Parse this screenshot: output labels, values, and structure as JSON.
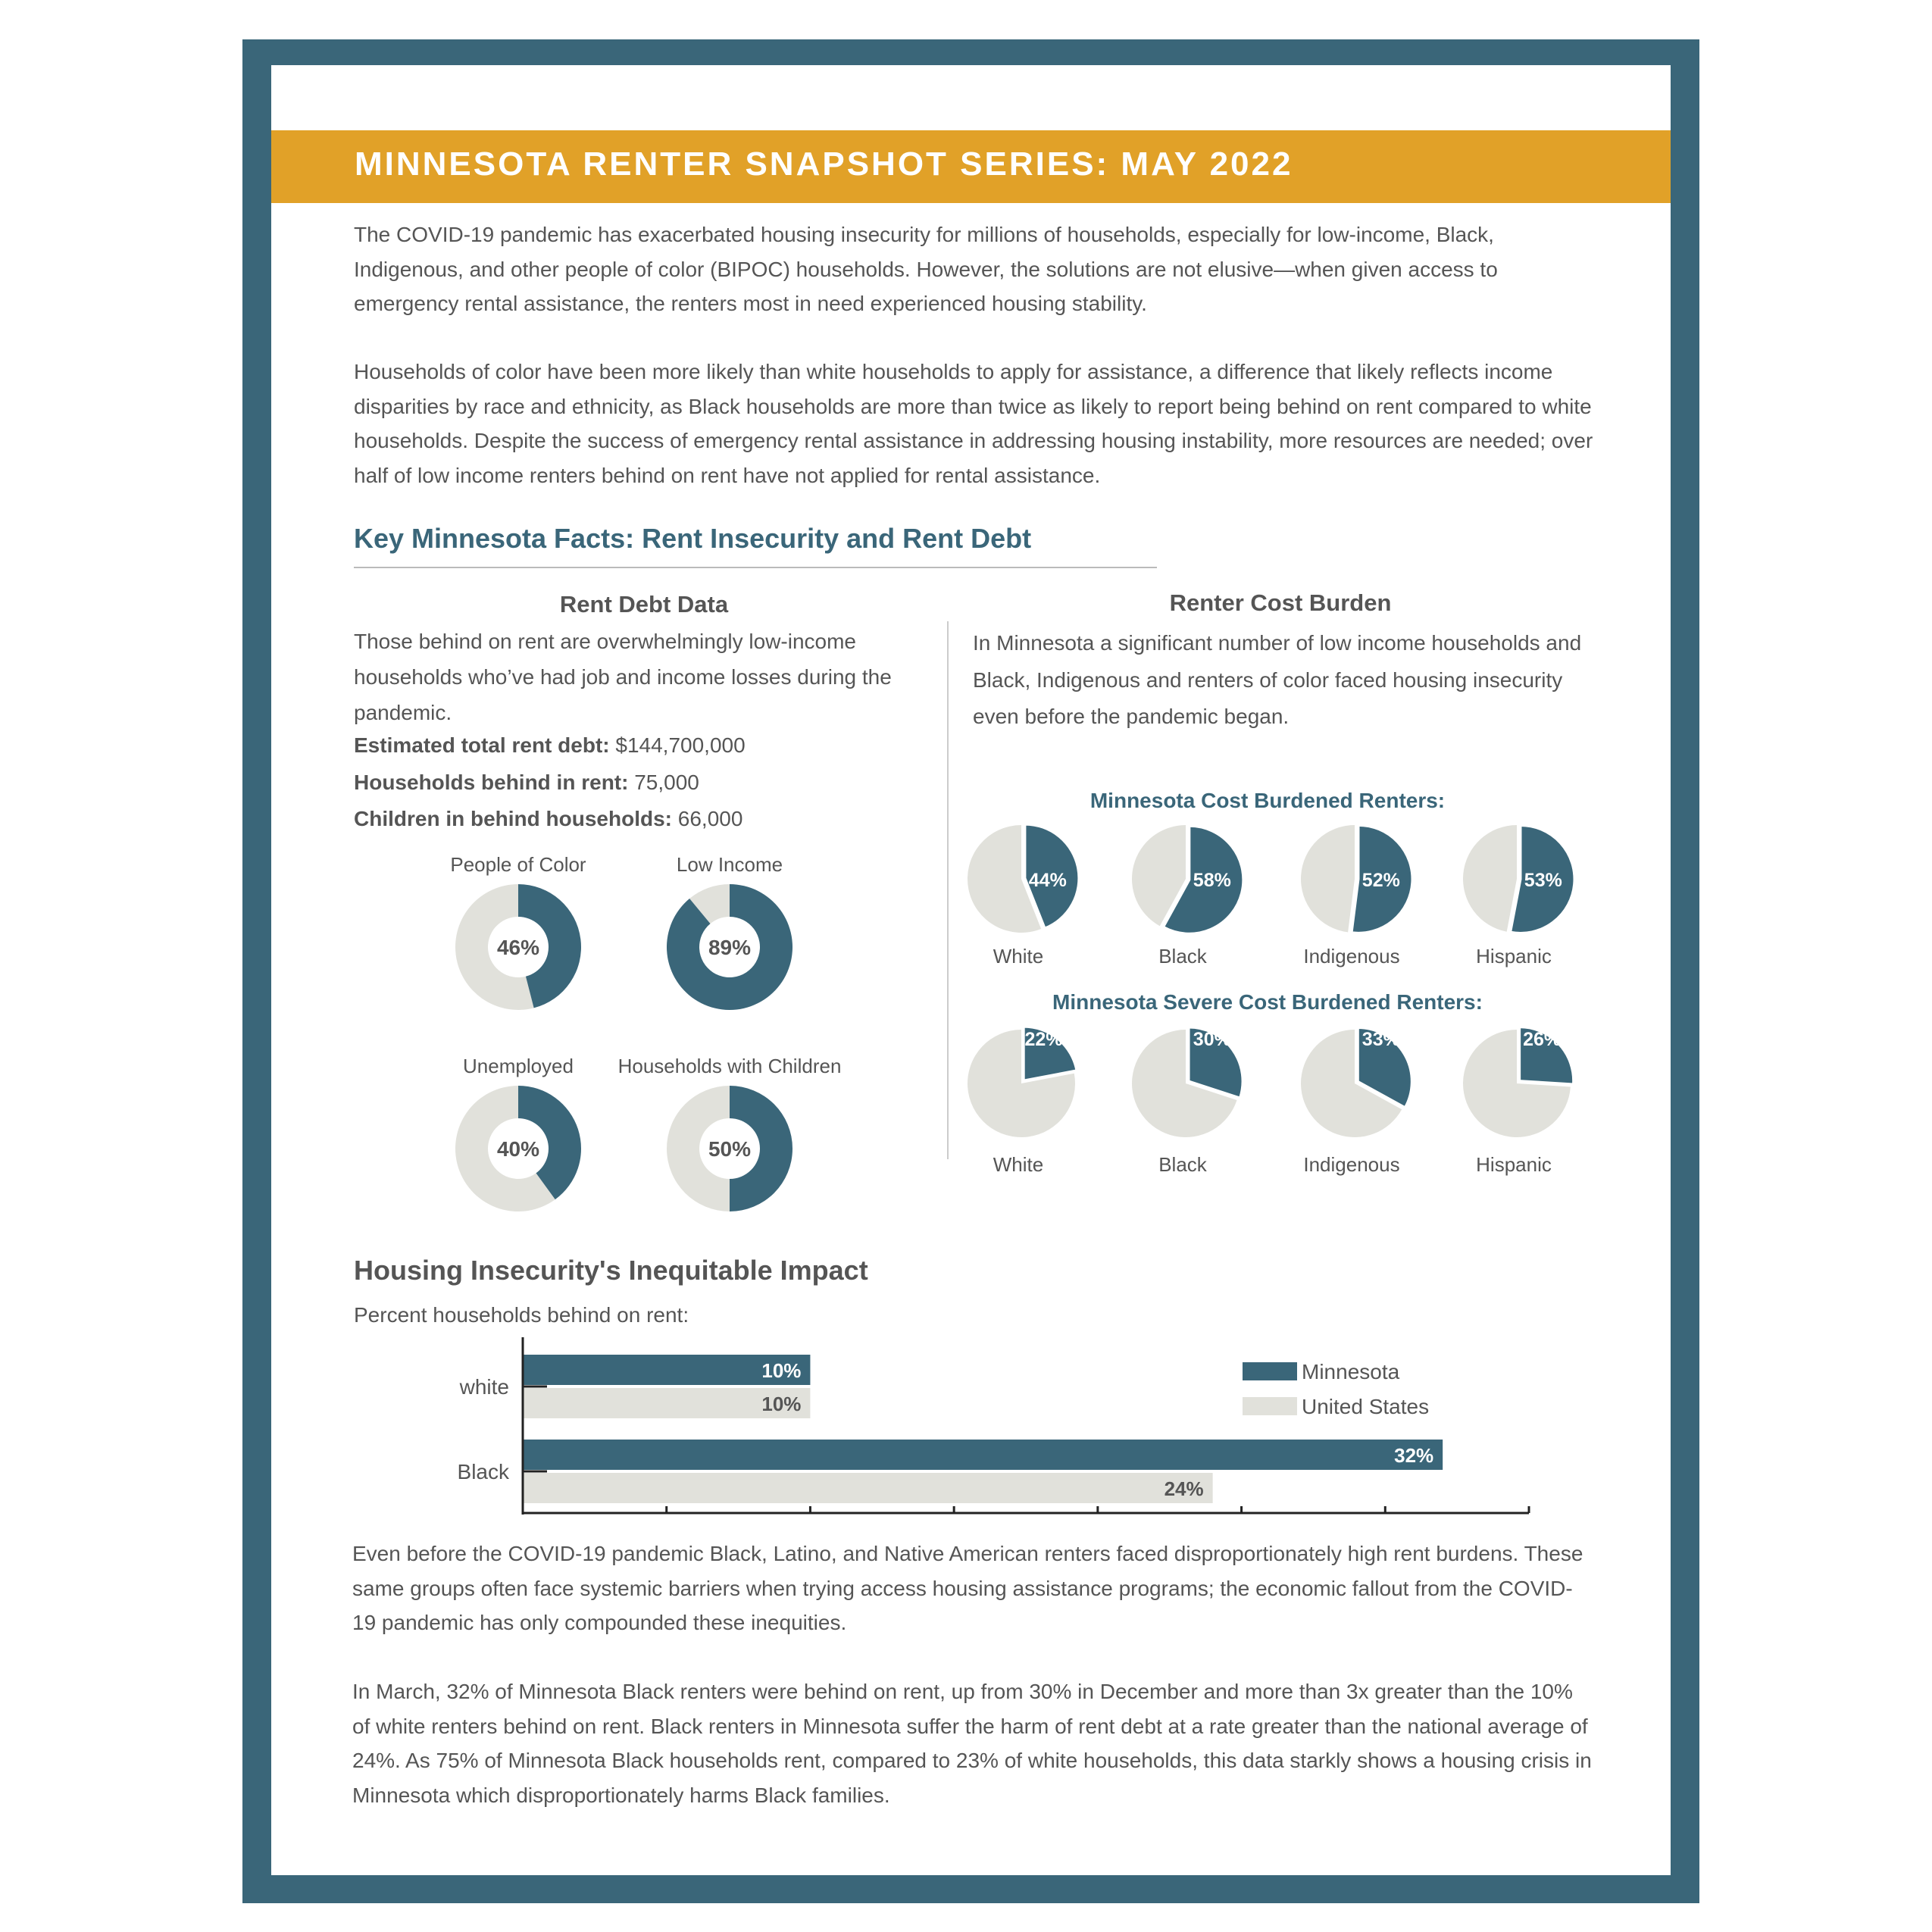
{
  "colors": {
    "frame": "#3a6679",
    "band": "#e1a128",
    "accent": "#3a6679",
    "neutral": "#e1e1db",
    "text": "#555555"
  },
  "title": "MINNESOTA RENTER SNAPSHOT SERIES: MAY 2022",
  "intro": [
    "The COVID-19 pandemic has exacerbated housing insecurity for millions of households, especially for low-income, Black, Indigenous, and other people of color (BIPOC) households. However, the solutions are not elusive—when given access to emergency rental assistance, the renters most in need experienced housing stability.",
    "Households of color have been more likely than white households to apply for assistance, a difference that likely reflects income disparities by race and ethnicity, as Black households are more than twice as likely to report being behind on rent compared to white households. Despite the success of emergency rental assistance in addressing housing instability, more resources are needed; over half of low income renters behind on rent have not applied for rental assistance."
  ],
  "facts_heading": "Key Minnesota Facts: Rent Insecurity and Rent Debt",
  "rent_debt": {
    "heading": "Rent Debt Data",
    "text": "Those behind on rent are overwhelmingly low-income households who’ve had job and income losses during the pandemic.",
    "fields": [
      {
        "label": "Estimated total rent debt:",
        "value": " $144,700,000"
      },
      {
        "label": "Households behind in rent:",
        "value": " 75,000"
      },
      {
        "label": "Children in behind households:",
        "value": " 66,000"
      }
    ]
  },
  "cost_burden": {
    "heading": "Renter Cost Burden",
    "text": "In Minnesota a significant number of low income households and Black, Indigenous and renters of color faced housing insecurity even before the pandemic began."
  },
  "chart_data": [
    {
      "type": "pie",
      "style": "donut",
      "categories": [
        "People of Color",
        "Low Income",
        "Unemployed",
        "Households with Children"
      ],
      "values": [
        46,
        89,
        40,
        50
      ],
      "labels": [
        "46%",
        "89%",
        "40%",
        "50%"
      ],
      "unit": "%"
    },
    {
      "type": "pie",
      "title": "Minnesota Cost Burdened Renters:",
      "categories": [
        "White",
        "Black",
        "Indigenous",
        "Hispanic"
      ],
      "values": [
        44,
        58,
        52,
        53
      ],
      "labels": [
        "44%",
        "58%",
        "52%",
        "53%"
      ]
    },
    {
      "type": "pie",
      "title": "Minnesota Severe Cost Burdened Renters:",
      "categories": [
        "White",
        "Black",
        "Indigenous",
        "Hispanic"
      ],
      "values": [
        22,
        30,
        33,
        26
      ],
      "labels": [
        "22%",
        "30%",
        "33%",
        "26%"
      ]
    },
    {
      "type": "bar",
      "orientation": "horizontal",
      "title": "Housing Insecurity's Inequitable Impact",
      "subtitle": "Percent households behind on rent:",
      "categories": [
        "white",
        "Black"
      ],
      "series": [
        {
          "name": "Minnesota",
          "values": [
            10,
            32
          ],
          "labels": [
            "10%",
            "32%"
          ]
        },
        {
          "name": "United States",
          "values": [
            10,
            24
          ],
          "labels": [
            "10%",
            "24%"
          ]
        }
      ],
      "xlim": [
        0,
        35
      ],
      "xtick_step": 5,
      "legend": "top-right",
      "grid": false
    }
  ],
  "outro": [
    "Even before the COVID-19 pandemic Black, Latino, and Native American renters faced disproportionately high rent burdens. These same groups often face systemic barriers when trying access housing assistance programs; the economic fallout from the COVID-19 pandemic has only compounded these inequities.",
    "In March, 32% of Minnesota Black renters were behind on rent, up from 30% in December and more than 3x greater than the 10% of white renters behind on rent. Black renters in Minnesota suffer the harm of rent debt at a rate greater than the national average of 24%. As 75% of Minnesota Black households rent, compared to 23% of white households, this data starkly shows a housing crisis in Minnesota which disproportionately harms Black families."
  ]
}
